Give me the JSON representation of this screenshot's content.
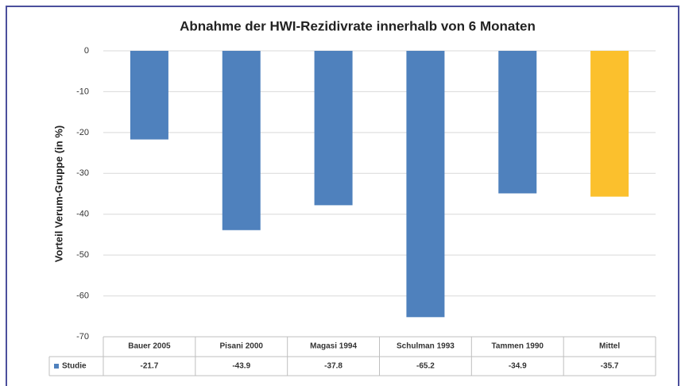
{
  "chart_data": {
    "type": "bar",
    "title": "Abnahme der HWI-Rezidivrate innerhalb von 6 Monaten",
    "y_label": "Vorteil Verum-Gruppe (in %)",
    "categories": [
      "Bauer 2005",
      "Pisani 2000",
      "Magasi 1994",
      "Schulman 1993",
      "Tammen 1990",
      "Mittel"
    ],
    "series": [
      {
        "name": "Studie",
        "color": "#4f81bd",
        "colors": [
          "#4f81bd",
          "#4f81bd",
          "#4f81bd",
          "#4f81bd",
          "#4f81bd",
          "#fbc02d"
        ],
        "values": [
          -21.7,
          -43.9,
          -37.8,
          -65.2,
          -34.9,
          -35.7
        ]
      }
    ],
    "ylim": [
      -70,
      0
    ],
    "yticks": [
      0,
      -10,
      -20,
      -30,
      -40,
      -50,
      -60,
      -70
    ],
    "grid": true,
    "data_table": true
  }
}
